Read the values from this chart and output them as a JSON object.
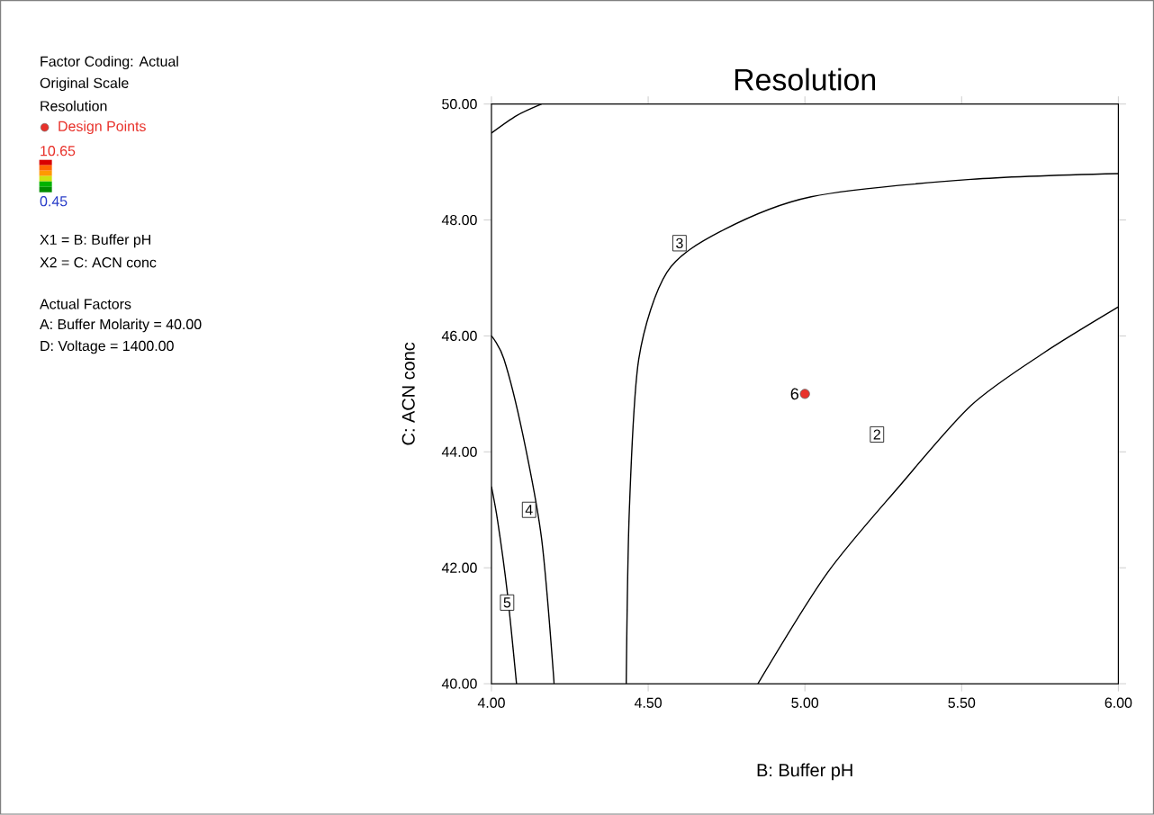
{
  "chart_data": {
    "type": "line",
    "title": "Resolution",
    "xlabel": "B: Buffer pH",
    "ylabel": "C: ACN conc",
    "xlim": [
      4,
      6
    ],
    "ylim": [
      40,
      50
    ],
    "xticks": [
      {
        "value": 4,
        "label": "4.00"
      },
      {
        "value": 4.5,
        "label": "4.50"
      },
      {
        "value": 5,
        "label": "5.00"
      },
      {
        "value": 5.5,
        "label": "5.50"
      },
      {
        "value": 6,
        "label": "6.00"
      }
    ],
    "yticks": [
      {
        "value": 40,
        "label": "40.00"
      },
      {
        "value": 42,
        "label": "42.00"
      },
      {
        "value": 44,
        "label": "44.00"
      },
      {
        "value": 46,
        "label": "46.00"
      },
      {
        "value": 48,
        "label": "48.00"
      },
      {
        "value": 50,
        "label": "50.00"
      }
    ],
    "legend": "left",
    "series": [
      {
        "color": "#000000",
        "x": [
          4.43,
          4.44,
          4.47,
          4.56,
          4.73,
          5.02,
          5.53,
          6.0
        ],
        "values": [
          40.0,
          43.0,
          45.6,
          47.1,
          47.8,
          48.4,
          48.7,
          48.8
        ]
      },
      {
        "color": "#000000",
        "x": [
          4.85,
          5.07,
          5.3,
          5.53,
          5.76,
          6.0
        ],
        "values": [
          40.0,
          41.9,
          43.4,
          44.8,
          45.7,
          46.5
        ]
      },
      {
        "color": "#000000",
        "x": [
          4.2,
          4.16,
          4.1,
          4.04,
          4.0
        ],
        "values": [
          40.0,
          42.5,
          44.3,
          45.6,
          46.0
        ]
      },
      {
        "color": "#000000",
        "x": [
          4.08,
          4.05,
          4.02,
          4.0
        ],
        "values": [
          40.0,
          41.6,
          42.8,
          43.4
        ]
      },
      {
        "color": "#000000",
        "x": [
          4.0,
          4.08,
          4.16
        ],
        "values": [
          49.5,
          49.8,
          50.0
        ]
      },
      {
        "type": "scatter",
        "name": "Design Points",
        "color": "#e8312a",
        "marker": "circle",
        "x": [
          5.0
        ],
        "values": [
          45.0
        ]
      }
    ],
    "annotations": [
      "Factor Coding: Actual",
      "Original Scale",
      "Resolution",
      "10.65",
      "0.45",
      "X1 = B: Buffer pH",
      "X2 = C: ACN conc",
      "Actual Factors",
      "A: Buffer Molarity = 40.00",
      "D: Voltage = 1400.00",
      {
        "text": "6",
        "x": 5.0,
        "y": 45.0
      },
      {
        "text": "3",
        "x": 4.6,
        "y": 47.6
      },
      {
        "text": "2",
        "x": 5.23,
        "y": 44.3
      },
      {
        "text": "4",
        "x": 4.12,
        "y": 43.0
      },
      {
        "text": "5",
        "x": 4.05,
        "y": 41.4
      }
    ]
  }
}
